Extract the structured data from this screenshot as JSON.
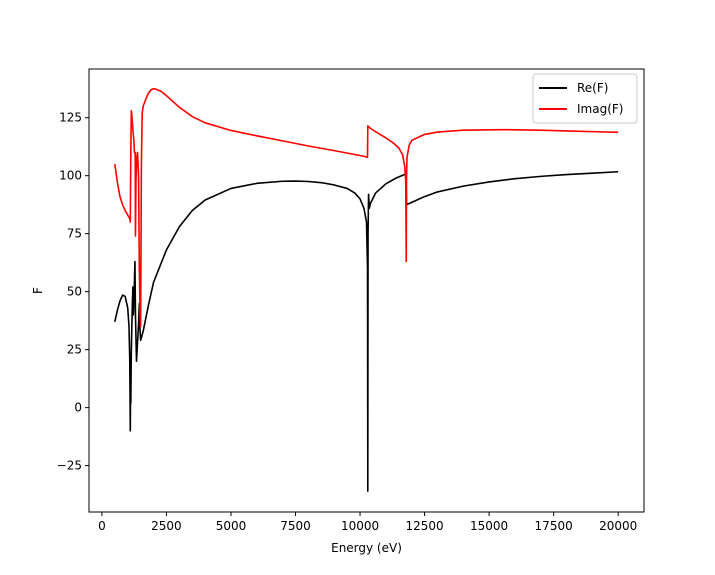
{
  "chart_data": {
    "type": "line",
    "title": "",
    "xlabel": "Energy (eV)",
    "ylabel": "F",
    "xlim": [
      -500,
      21000
    ],
    "ylim": [
      -45,
      146
    ],
    "xticks": [
      0,
      2500,
      5000,
      7500,
      10000,
      12500,
      15000,
      17500,
      20000
    ],
    "yticks": [
      -25,
      0,
      25,
      50,
      75,
      100,
      125
    ],
    "xtick_labels": [
      "0",
      "2500",
      "5000",
      "7500",
      "10000",
      "12500",
      "15000",
      "17500",
      "20000"
    ],
    "ytick_labels": [
      "−25",
      "0",
      "25",
      "50",
      "75",
      "100",
      "125"
    ],
    "grid": false,
    "legend_position": "top-right",
    "series": [
      {
        "name": "Re(F)",
        "color": "#000000",
        "points": [
          [
            500,
            37
          ],
          [
            600,
            42
          ],
          [
            700,
            46
          ],
          [
            800,
            48.5
          ],
          [
            900,
            48
          ],
          [
            1000,
            43
          ],
          [
            1050,
            35
          ],
          [
            1080,
            20
          ],
          [
            1100,
            -10
          ],
          [
            1110,
            10
          ],
          [
            1120,
            2
          ],
          [
            1140,
            25
          ],
          [
            1180,
            45
          ],
          [
            1200,
            52
          ],
          [
            1220,
            40
          ],
          [
            1250,
            50
          ],
          [
            1280,
            63
          ],
          [
            1300,
            40
          ],
          [
            1340,
            20
          ],
          [
            1380,
            28
          ],
          [
            1420,
            36
          ],
          [
            1450,
            45
          ],
          [
            1470,
            35
          ],
          [
            1500,
            29
          ],
          [
            1600,
            33
          ],
          [
            1800,
            44
          ],
          [
            2000,
            54
          ],
          [
            2500,
            68
          ],
          [
            3000,
            78
          ],
          [
            3500,
            85
          ],
          [
            4000,
            89.5
          ],
          [
            5000,
            94.5
          ],
          [
            6000,
            96.7
          ],
          [
            7000,
            97.6
          ],
          [
            7500,
            97.7
          ],
          [
            8000,
            97.5
          ],
          [
            8500,
            97
          ],
          [
            9000,
            96
          ],
          [
            9500,
            94.5
          ],
          [
            9800,
            92.5
          ],
          [
            10000,
            90
          ],
          [
            10150,
            86
          ],
          [
            10250,
            80
          ],
          [
            10290,
            60
          ],
          [
            10300,
            -36
          ],
          [
            10310,
            75
          ],
          [
            10330,
            92
          ],
          [
            10360,
            86
          ],
          [
            10400,
            88
          ],
          [
            10600,
            92.5
          ],
          [
            11000,
            96.5
          ],
          [
            11400,
            99
          ],
          [
            11780,
            100.8
          ],
          [
            11800,
            87.5
          ],
          [
            12000,
            88.5
          ],
          [
            12500,
            91
          ],
          [
            13000,
            93
          ],
          [
            14000,
            95.5
          ],
          [
            15000,
            97.3
          ],
          [
            16000,
            98.7
          ],
          [
            17000,
            99.7
          ],
          [
            18000,
            100.5
          ],
          [
            19000,
            101.1
          ],
          [
            20000,
            101.7
          ]
        ]
      },
      {
        "name": "Imag(F)",
        "color": "#ff0000",
        "points": [
          [
            500,
            105
          ],
          [
            600,
            97
          ],
          [
            700,
            91
          ],
          [
            800,
            87.5
          ],
          [
            900,
            85
          ],
          [
            1000,
            83
          ],
          [
            1080,
            81.5
          ],
          [
            1100,
            80
          ],
          [
            1120,
            110
          ],
          [
            1140,
            128
          ],
          [
            1160,
            126
          ],
          [
            1200,
            120
          ],
          [
            1240,
            115
          ],
          [
            1260,
            110
          ],
          [
            1290,
            110
          ],
          [
            1300,
            74
          ],
          [
            1320,
            98
          ],
          [
            1350,
            108
          ],
          [
            1380,
            110
          ],
          [
            1420,
            100
          ],
          [
            1450,
            60
          ],
          [
            1480,
            40
          ],
          [
            1500,
            35
          ],
          [
            1530,
            105
          ],
          [
            1560,
            127
          ],
          [
            1600,
            130
          ],
          [
            1700,
            133
          ],
          [
            1800,
            135.5
          ],
          [
            1900,
            137
          ],
          [
            2000,
            137.5
          ],
          [
            2100,
            137.3
          ],
          [
            2300,
            136.3
          ],
          [
            2500,
            134.5
          ],
          [
            3000,
            129.5
          ],
          [
            3500,
            125.5
          ],
          [
            4000,
            122.8
          ],
          [
            5000,
            119.5
          ],
          [
            6000,
            117.2
          ],
          [
            7000,
            115
          ],
          [
            8000,
            112.8
          ],
          [
            9000,
            110.8
          ],
          [
            10000,
            108.7
          ],
          [
            10290,
            108
          ],
          [
            10300,
            121.5
          ],
          [
            10400,
            120.4
          ],
          [
            10600,
            119
          ],
          [
            11000,
            116.3
          ],
          [
            11300,
            114
          ],
          [
            11500,
            112
          ],
          [
            11650,
            109
          ],
          [
            11730,
            104
          ],
          [
            11770,
            98
          ],
          [
            11790,
            63
          ],
          [
            11800,
            99
          ],
          [
            11820,
            108
          ],
          [
            11900,
            113
          ],
          [
            12000,
            115.2
          ],
          [
            12500,
            117.8
          ],
          [
            13000,
            118.8
          ],
          [
            14000,
            119.6
          ],
          [
            15000,
            119.8
          ],
          [
            15500,
            119.85
          ],
          [
            16000,
            119.8
          ],
          [
            17000,
            119.6
          ],
          [
            18000,
            119.3
          ],
          [
            19000,
            119
          ],
          [
            20000,
            118.7
          ]
        ]
      }
    ]
  }
}
